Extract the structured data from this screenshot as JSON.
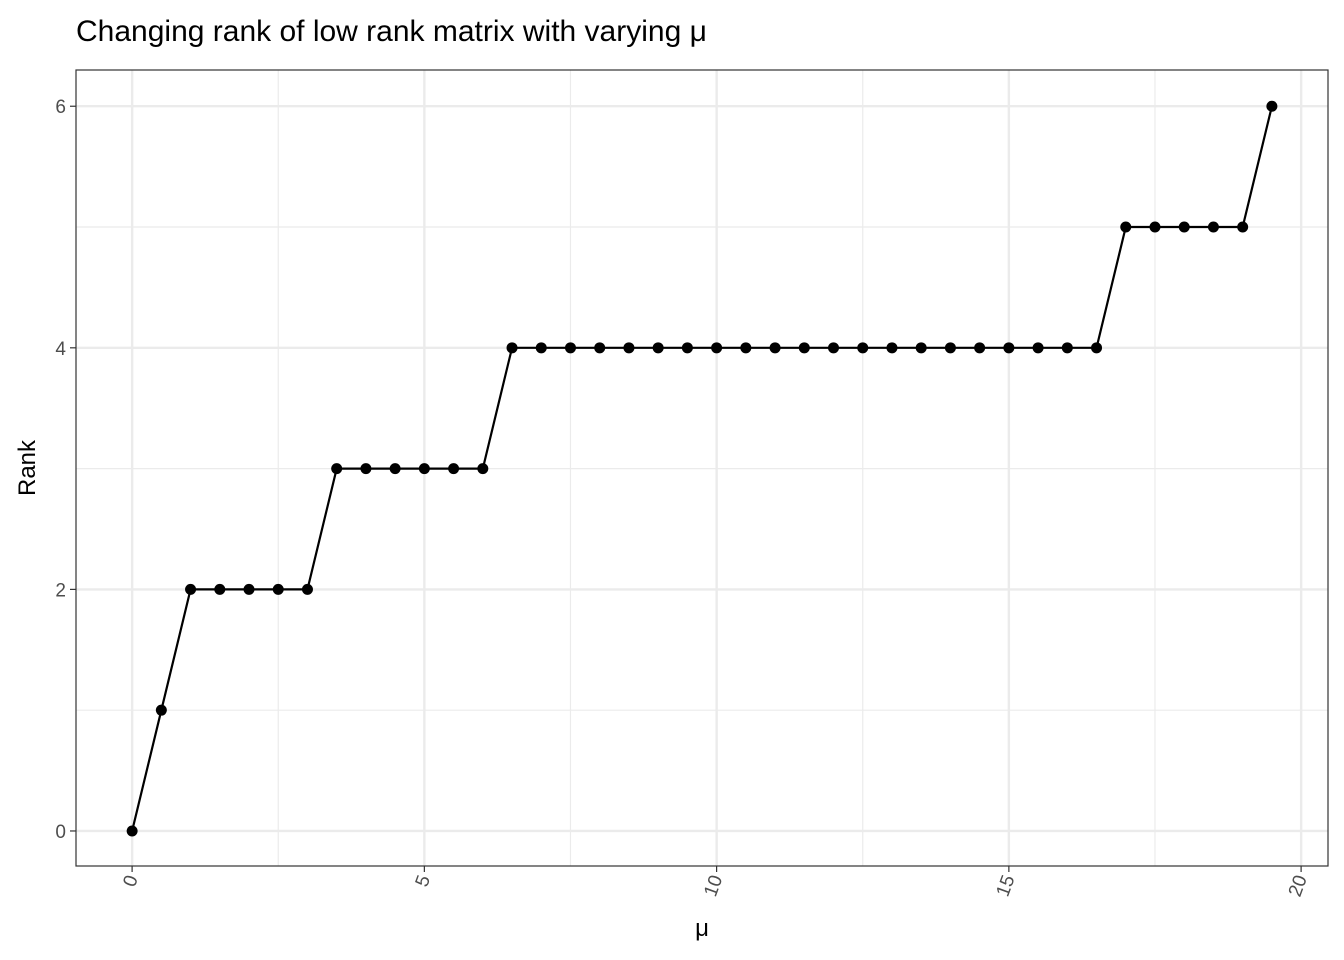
{
  "chart_data": {
    "type": "line",
    "title": "Changing rank of low rank matrix with varying μ",
    "x_label": "μ",
    "y_label": "Rank",
    "x": [
      0,
      0.5,
      1,
      1.5,
      2,
      2.5,
      3,
      3.5,
      4,
      4.5,
      5,
      5.5,
      6,
      6.5,
      7,
      7.5,
      8,
      8.5,
      9,
      9.5,
      10,
      10.5,
      11,
      11.5,
      12,
      12.5,
      13,
      13.5,
      14,
      14.5,
      15,
      15.5,
      16,
      16.5,
      17,
      17.5,
      18,
      18.5,
      19,
      19.5
    ],
    "series": [
      {
        "color": "#000000",
        "values": [
          0,
          1,
          2,
          2,
          2,
          2,
          2,
          3,
          3,
          3,
          3,
          3,
          3,
          4,
          4,
          4,
          4,
          4,
          4,
          4,
          4,
          4,
          4,
          4,
          4,
          4,
          4,
          4,
          4,
          4,
          4,
          4,
          4,
          4,
          5,
          5,
          5,
          5,
          5,
          6
        ]
      }
    ],
    "xlim": [
      -0.96,
      20.46
    ],
    "ylim": [
      -0.29,
      6.3
    ],
    "xticks": [
      0,
      5,
      10,
      15,
      20
    ],
    "yticks": [
      0,
      2,
      4,
      6
    ],
    "x_minor_grid": [
      2.5,
      7.5,
      12.5,
      17.5
    ],
    "y_minor_grid": [
      1,
      3,
      5
    ],
    "grid": true
  }
}
